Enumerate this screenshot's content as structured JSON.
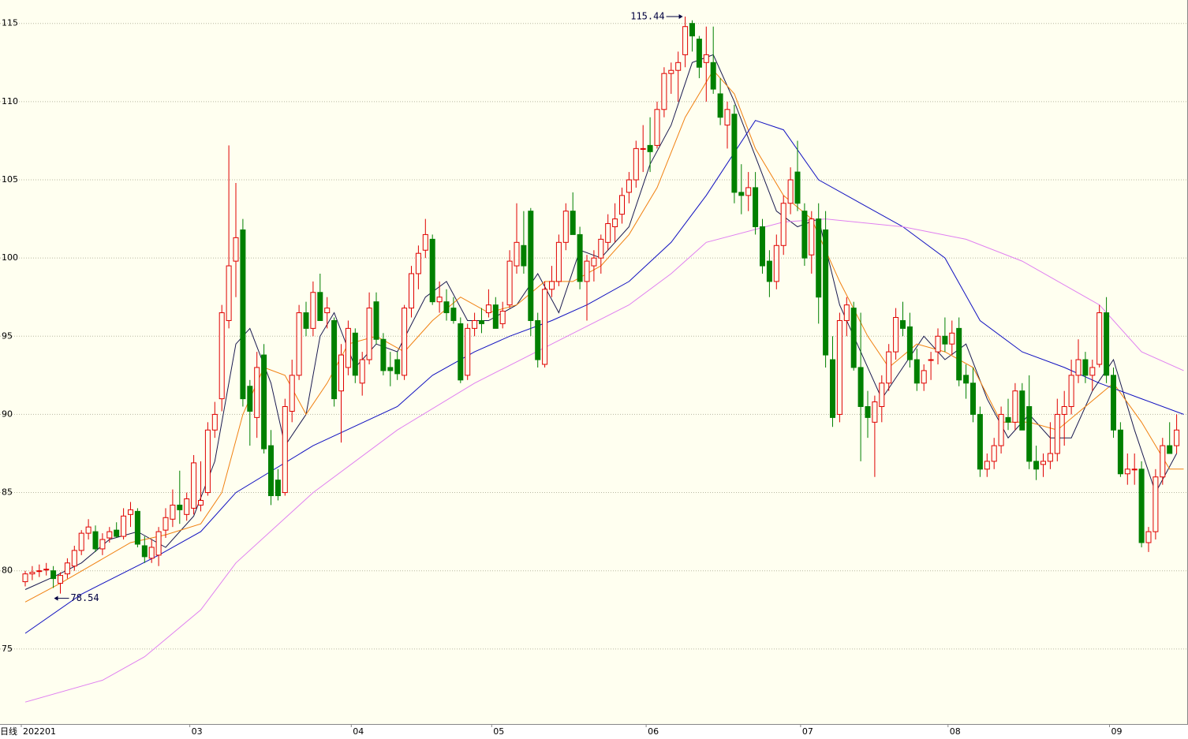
{
  "chart_data": {
    "type": "candlestick",
    "period_label": "日线",
    "categories": [
      "202201",
      null,
      null,
      null,
      null,
      null,
      null,
      null,
      null,
      null,
      null,
      null,
      null,
      null,
      null,
      null,
      null,
      null,
      null,
      null,
      null,
      null,
      null,
      null,
      "03",
      null,
      null,
      null,
      null,
      null,
      null,
      null,
      null,
      null,
      null,
      null,
      null,
      null,
      null,
      null,
      null,
      null,
      null,
      null,
      null,
      null,
      null,
      "04",
      null,
      null,
      null,
      null,
      null,
      null,
      null,
      null,
      null,
      null,
      null,
      null,
      null,
      null,
      null,
      null,
      null,
      null,
      null,
      "05",
      null,
      null,
      null,
      null,
      null,
      null,
      null,
      null,
      null,
      null,
      null,
      null,
      null,
      null,
      null,
      null,
      null,
      null,
      null,
      null,
      null,
      "06",
      null,
      null,
      null,
      null,
      null,
      null,
      null,
      null,
      null,
      null,
      null,
      null,
      null,
      null,
      null,
      null,
      null,
      null,
      null,
      null,
      null,
      "07",
      null,
      null,
      null,
      null,
      null,
      null,
      null,
      null,
      null,
      null,
      null,
      null,
      null,
      null,
      null,
      null,
      null,
      null,
      null,
      null,
      "08",
      null,
      null,
      null,
      null,
      null,
      null,
      null,
      null,
      null,
      null,
      null,
      null,
      null,
      null,
      null,
      null,
      null,
      null,
      null,
      null,
      null,
      null,
      "09",
      null,
      null,
      null,
      null,
      null,
      null,
      null,
      null,
      null
    ],
    "open": [
      79.3,
      79.8,
      80.0,
      80.1,
      80.0,
      79.2,
      79.8,
      80.3,
      81.3,
      82.4,
      82.5,
      81.4,
      82.1,
      82.6,
      82.2,
      83.6,
      83.8,
      81.6,
      80.8,
      81.0,
      82.6,
      83.3,
      84.2,
      83.6,
      84.0,
      84.2,
      85.0,
      89.0,
      91.0,
      96.0,
      99.8,
      101.8,
      91.8,
      89.8,
      93.8,
      88.0,
      85.8,
      85.0,
      90.2,
      92.5,
      96.5,
      95.5,
      97.8,
      96.5,
      96.0,
      91.5,
      93.0,
      95.2,
      92.0,
      93.5,
      97.2,
      94.8,
      93.0,
      93.5,
      92.5,
      96.8,
      99.0,
      100.5,
      101.2,
      97.2,
      97.2,
      96.8,
      95.8,
      92.5,
      95.5,
      96.0,
      96.5,
      97.0,
      95.8,
      97.0,
      99.5,
      100.8,
      103.0,
      96.0,
      93.2,
      98.0,
      98.5,
      101.0,
      103.0,
      101.5,
      98.5,
      99.5,
      100.0,
      101.0,
      102.0,
      102.8,
      104.2,
      105.0,
      107.0,
      107.2,
      107.2,
      109.5,
      111.8,
      112.0,
      113.0,
      115.0,
      114.0,
      112.5,
      112.5,
      110.5,
      108.5,
      109.2,
      104.2,
      104.0,
      104.5,
      102.0,
      99.8,
      98.5,
      100.8,
      103.5,
      105.5,
      103.0,
      100.2,
      102.5,
      101.8,
      93.5,
      90.0,
      96.0,
      96.8,
      93.0,
      90.5,
      89.5,
      90.5,
      92.0,
      94.0,
      96.0,
      95.6,
      93.5,
      92.0,
      93.5,
      94.0,
      95.0,
      94.5,
      95.5,
      92.5,
      92.0,
      90.0,
      86.5,
      87.0,
      88.0,
      89.8,
      89.5,
      91.5,
      90.5,
      87.0,
      86.8,
      87.0,
      87.5,
      90.0,
      90.5,
      92.5,
      93.5,
      92.5,
      93.2,
      96.5,
      92.5,
      89.0,
      86.2,
      86.5,
      86.5,
      81.8,
      82.5,
      86.0,
      88.0,
      88.0
    ],
    "high": [
      80.0,
      80.3,
      80.4,
      80.5,
      80.3,
      79.9,
      80.8,
      81.6,
      82.6,
      83.3,
      82.9,
      82.4,
      82.8,
      83.1,
      84.0,
      84.4,
      84.0,
      82.2,
      82.0,
      82.8,
      84.0,
      85.2,
      86.4,
      85.0,
      87.4,
      87.0,
      89.5,
      90.8,
      97.0,
      107.2,
      104.8,
      102.5,
      92.2,
      94.0,
      94.5,
      89.0,
      86.5,
      91.0,
      93.5,
      97.0,
      97.2,
      98.5,
      99.0,
      97.5,
      96.2,
      94.5,
      96.0,
      95.5,
      94.0,
      97.8,
      97.8,
      95.2,
      94.0,
      94.0,
      97.0,
      99.5,
      100.8,
      102.5,
      101.5,
      98.5,
      98.0,
      97.5,
      96.2,
      95.8,
      96.5,
      96.8,
      98.0,
      97.5,
      97.2,
      100.5,
      103.5,
      103.0,
      103.2,
      96.5,
      98.5,
      99.5,
      101.5,
      103.5,
      104.2,
      102.0,
      100.2,
      100.5,
      101.5,
      102.8,
      103.5,
      104.5,
      105.5,
      107.5,
      108.5,
      109.0,
      110.0,
      112.2,
      112.5,
      113.2,
      115.44,
      115.2,
      114.2,
      114.8,
      114.8,
      111.5,
      110.0,
      109.8,
      106.0,
      105.5,
      105.5,
      102.5,
      100.5,
      101.5,
      104.0,
      105.8,
      107.5,
      103.5,
      103.0,
      103.5,
      103.0,
      95.0,
      96.5,
      97.5,
      97.2,
      96.5,
      91.5,
      91.2,
      92.5,
      94.5,
      96.8,
      97.2,
      96.5,
      94.2,
      93.2,
      94.0,
      95.5,
      96.2,
      96.0,
      96.2,
      93.2,
      93.0,
      90.5,
      87.5,
      88.5,
      90.5,
      91.0,
      92.0,
      92.0,
      92.5,
      88.0,
      87.5,
      89.5,
      91.0,
      91.5,
      93.5,
      94.8,
      94.0,
      93.5,
      97.0,
      97.5,
      93.0,
      89.5,
      87.5,
      87.5,
      87.0,
      82.8,
      86.5,
      88.5,
      89.5,
      90.0
    ],
    "low": [
      79.0,
      79.4,
      79.6,
      79.7,
      78.9,
      78.54,
      79.5,
      80.0,
      81.0,
      82.0,
      81.2,
      81.0,
      81.8,
      82.1,
      82.0,
      82.8,
      81.5,
      80.5,
      80.5,
      80.3,
      82.1,
      82.8,
      83.0,
      83.2,
      83.6,
      83.8,
      84.8,
      88.5,
      90.2,
      95.5,
      97.5,
      90.5,
      88.0,
      88.5,
      87.5,
      84.2,
      84.5,
      84.8,
      89.5,
      92.2,
      95.0,
      95.0,
      96.0,
      95.5,
      90.5,
      88.2,
      92.5,
      92.0,
      91.2,
      93.2,
      94.5,
      92.5,
      91.8,
      92.2,
      92.2,
      96.2,
      98.0,
      100.0,
      97.0,
      96.5,
      96.0,
      95.8,
      92.0,
      92.2,
      95.0,
      95.2,
      96.2,
      95.5,
      95.5,
      96.8,
      99.0,
      99.0,
      95.0,
      93.0,
      93.0,
      97.5,
      98.2,
      100.5,
      101.5,
      98.0,
      96.0,
      98.5,
      99.0,
      100.5,
      101.0,
      102.2,
      103.5,
      104.5,
      105.5,
      105.5,
      107.0,
      109.0,
      110.5,
      110.0,
      112.2,
      113.2,
      111.5,
      110.0,
      110.5,
      108.5,
      107.0,
      103.5,
      102.8,
      103.0,
      101.5,
      99.0,
      97.5,
      98.0,
      100.2,
      102.8,
      103.0,
      99.5,
      99.0,
      95.8,
      93.0,
      89.2,
      89.5,
      95.0,
      92.8,
      87.0,
      88.5,
      86.0,
      89.5,
      91.5,
      93.5,
      95.0,
      93.0,
      91.5,
      91.5,
      92.2,
      93.2,
      94.0,
      93.8,
      91.8,
      91.0,
      89.5,
      86.0,
      86.0,
      86.5,
      87.5,
      89.0,
      89.0,
      89.0,
      86.5,
      85.8,
      86.0,
      86.5,
      87.0,
      88.0,
      90.0,
      92.0,
      92.0,
      91.5,
      93.0,
      92.0,
      88.5,
      86.0,
      85.5,
      85.5,
      81.5,
      81.2,
      82.0,
      85.5,
      87.5,
      87.5
    ],
    "close": [
      79.8,
      79.9,
      80.0,
      80.1,
      79.5,
      79.7,
      80.5,
      81.3,
      82.4,
      82.8,
      81.4,
      82.0,
      82.5,
      82.2,
      83.5,
      83.9,
      81.7,
      80.9,
      81.5,
      82.5,
      83.4,
      84.2,
      83.9,
      84.6,
      86.9,
      84.5,
      89.0,
      90.0,
      96.5,
      99.5,
      101.3,
      91.0,
      90.2,
      93.0,
      87.8,
      84.8,
      84.8,
      90.5,
      92.5,
      96.5,
      95.5,
      97.8,
      96.0,
      96.8,
      91.0,
      93.8,
      95.5,
      92.5,
      93.5,
      96.8,
      94.8,
      92.8,
      92.8,
      92.6,
      96.8,
      99.0,
      100.3,
      101.5,
      97.2,
      97.5,
      96.5,
      96.0,
      92.2,
      95.5,
      96.0,
      95.8,
      97.0,
      95.5,
      96.6,
      99.8,
      101.0,
      99.5,
      96.0,
      93.5,
      98.0,
      98.5,
      101.0,
      103.0,
      101.5,
      98.5,
      99.8,
      100.0,
      101.2,
      102.2,
      102.5,
      104.0,
      105.0,
      107.0,
      107.0,
      106.8,
      109.5,
      111.8,
      112.0,
      112.5,
      114.8,
      114.2,
      112.2,
      113.0,
      110.8,
      109.0,
      109.5,
      104.2,
      104.0,
      104.5,
      102.0,
      99.5,
      98.5,
      100.8,
      103.5,
      105.0,
      103.5,
      100.0,
      102.5,
      97.5,
      93.8,
      89.8,
      96.0,
      97.0,
      93.0,
      90.5,
      89.8,
      90.8,
      92.0,
      94.0,
      96.2,
      95.5,
      93.5,
      92.0,
      92.8,
      93.5,
      95.0,
      94.5,
      95.2,
      92.2,
      92.0,
      90.0,
      86.5,
      87.0,
      88.0,
      90.0,
      89.5,
      91.5,
      89.0,
      87.0,
      86.5,
      87.0,
      87.5,
      90.0,
      90.5,
      92.5,
      93.5,
      92.5,
      93.0,
      96.5,
      92.5,
      89.0,
      86.2,
      86.5,
      86.5,
      81.8,
      82.5,
      86.0,
      88.0,
      87.5,
      89.0
    ],
    "up_color": "#e00000",
    "down_color": "#008000",
    "lines": [
      {
        "color": "#1a1a50",
        "x": [
          0,
          4,
          8,
          12,
          16,
          20,
          24,
          27,
          30,
          32,
          35,
          37,
          40,
          42,
          44,
          47,
          50,
          53,
          57,
          60,
          63,
          66,
          70,
          73,
          76,
          79,
          82,
          86,
          89,
          92,
          95,
          98,
          101,
          104,
          107,
          110,
          113,
          116,
          119,
          122,
          125,
          128,
          131,
          134,
          137,
          140,
          143,
          146,
          149,
          152,
          155,
          158,
          161,
          164
        ],
        "values": [
          78.8,
          79.6,
          80.5,
          82,
          82.5,
          81.5,
          83.5,
          87,
          94.5,
          95.5,
          92,
          88,
          90,
          95,
          96.5,
          93,
          94.5,
          94,
          97.5,
          98.5,
          96,
          96,
          97,
          99,
          96.5,
          100.5,
          100,
          102,
          106,
          108.5,
          112.5,
          113,
          110,
          106.5,
          103,
          102,
          102.5,
          97,
          94,
          91,
          93,
          95,
          93.5,
          94.5,
          91,
          88.5,
          90,
          88.5,
          88.5,
          91.5,
          93.5,
          89,
          85,
          87.5
        ]
      },
      {
        "color": "#f08010",
        "x": [
          0,
          5,
          10,
          15,
          20,
          25,
          28,
          31,
          34,
          37,
          40,
          43,
          46,
          50,
          54,
          58,
          62,
          66,
          70,
          74,
          78,
          82,
          86,
          90,
          94,
          98,
          101,
          104,
          108,
          112,
          116,
          120,
          123,
          127,
          131,
          135,
          139,
          143,
          147,
          151,
          155,
          159,
          163,
          165
        ],
        "values": [
          78,
          79.2,
          80.5,
          81.8,
          82.3,
          83,
          85,
          90,
          93,
          92.5,
          90,
          92,
          94.5,
          95,
          94,
          96,
          97.5,
          96.5,
          97,
          98.5,
          98.5,
          99.5,
          101.5,
          104.5,
          109,
          112,
          110.5,
          107,
          104,
          102.5,
          98.5,
          95,
          93,
          94.5,
          94,
          93,
          89.5,
          89.5,
          89,
          90.5,
          92,
          89.5,
          86.5,
          86.5
        ]
      },
      {
        "color": "#1010c0",
        "x": [
          0,
          8,
          19,
          25,
          30,
          41,
          53,
          58,
          64,
          69,
          75,
          80,
          86,
          92,
          97,
          104,
          108,
          113,
          119,
          125,
          131,
          136,
          142,
          148,
          153,
          159,
          165
        ],
        "values": [
          76,
          78.5,
          81,
          82.5,
          85,
          88,
          90.5,
          92.5,
          94,
          95,
          96,
          97,
          98.5,
          101,
          104,
          108.8,
          108.2,
          105,
          103.5,
          102,
          100,
          96,
          94,
          93,
          92,
          91,
          90
        ]
      },
      {
        "color": "#e080f0",
        "x": [
          0,
          11,
          17,
          25,
          30,
          41,
          53,
          64,
          75,
          86,
          92,
          97,
          108,
          114,
          125,
          134,
          142,
          153,
          159,
          165
        ],
        "values": [
          71.6,
          73,
          74.5,
          77.5,
          80.5,
          85,
          89,
          92,
          94.5,
          97,
          99,
          101,
          102.3,
          102.5,
          102,
          101.2,
          99.8,
          97,
          94,
          92.8
        ]
      }
    ],
    "max_label": 115.44,
    "min_label": 78.54,
    "ylim": [
      70.2,
      116.5
    ],
    "yticks": [
      75,
      80,
      85,
      90,
      95,
      100,
      105,
      110,
      115
    ],
    "grid": true
  }
}
